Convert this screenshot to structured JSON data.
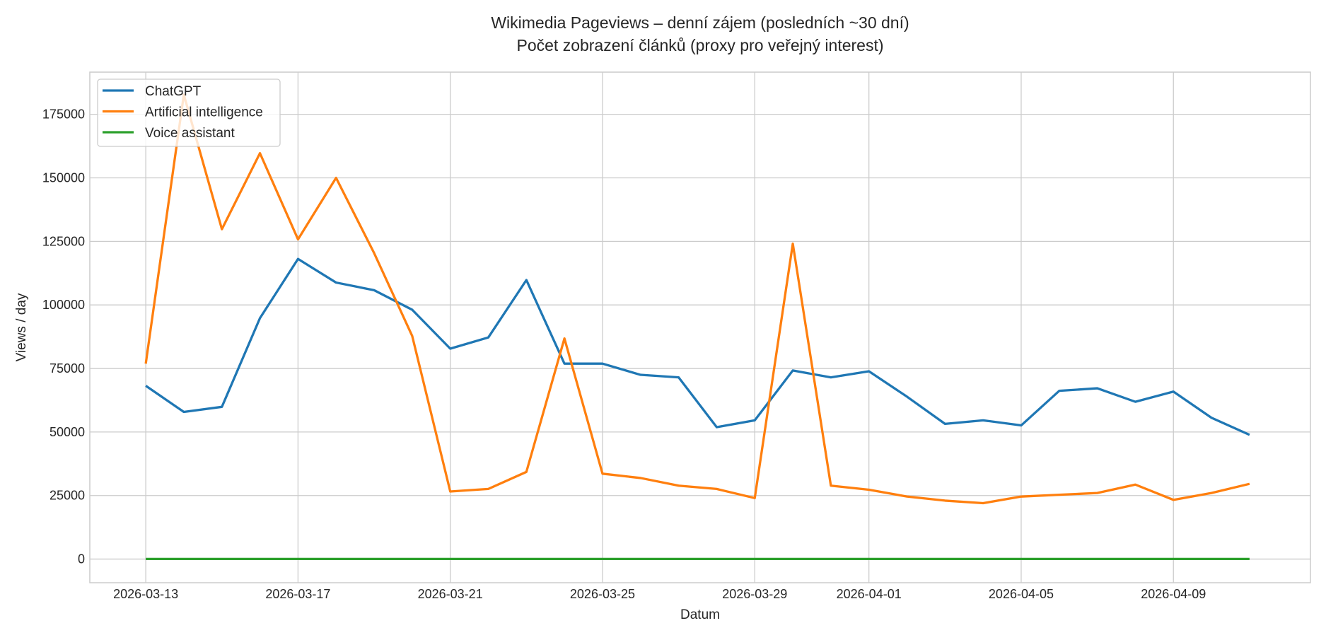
{
  "chart_data": {
    "type": "line",
    "title": "Wikimedia Pageviews – denní zájem (posledních ~30 dní)",
    "subtitle": "Počet zobrazení článků (proxy pro veřejný interest)",
    "xlabel": "Datum",
    "ylabel": "Views / day",
    "ylim": [
      -9300,
      191600
    ],
    "yticks": [
      0,
      25000,
      50000,
      75000,
      100000,
      125000,
      150000,
      175000
    ],
    "ytick_labels": [
      "0",
      "25000",
      "50000",
      "75000",
      "100000",
      "125000",
      "150000",
      "175000"
    ],
    "start_date": "2026-03-13",
    "xticks": [
      {
        "day": 0,
        "label": "2026-03-13"
      },
      {
        "day": 4,
        "label": "2026-03-17"
      },
      {
        "day": 8,
        "label": "2026-03-21"
      },
      {
        "day": 12,
        "label": "2026-03-25"
      },
      {
        "day": 16,
        "label": "2026-03-29"
      },
      {
        "day": 19,
        "label": "2026-04-01"
      },
      {
        "day": 23,
        "label": "2026-04-05"
      },
      {
        "day": 27,
        "label": "2026-04-09"
      }
    ],
    "grid": true,
    "legend_position": "top-left",
    "series": [
      {
        "name": "ChatGPT",
        "color": "#1f77b4",
        "values": [
          68200,
          57900,
          59900,
          94800,
          118100,
          108800,
          105800,
          98100,
          82800,
          87200,
          109800,
          76900,
          76900,
          72500,
          71500,
          51900,
          54600,
          74200,
          71500,
          73900,
          63900,
          53200,
          54600,
          52600,
          66200,
          67200,
          61900,
          65900,
          55600,
          48900
        ]
      },
      {
        "name": "Artificial intelligence",
        "color": "#ff7f0e",
        "values": [
          76900,
          182700,
          129800,
          159700,
          125800,
          150000,
          120400,
          87800,
          26600,
          27600,
          34300,
          86800,
          33600,
          31900,
          28900,
          27600,
          24000,
          124100,
          28900,
          27300,
          24600,
          23000,
          22000,
          24600,
          25300,
          26000,
          29300,
          23300,
          26000,
          29600
        ]
      },
      {
        "name": "Voice assistant",
        "color": "#2ca02c",
        "values": [
          60,
          55,
          58,
          62,
          57,
          54,
          59,
          61,
          56,
          53,
          58,
          60,
          57,
          55,
          52,
          54,
          56,
          59,
          57,
          55,
          58,
          53,
          52,
          54,
          57,
          56,
          55,
          58,
          54,
          53
        ]
      }
    ]
  }
}
